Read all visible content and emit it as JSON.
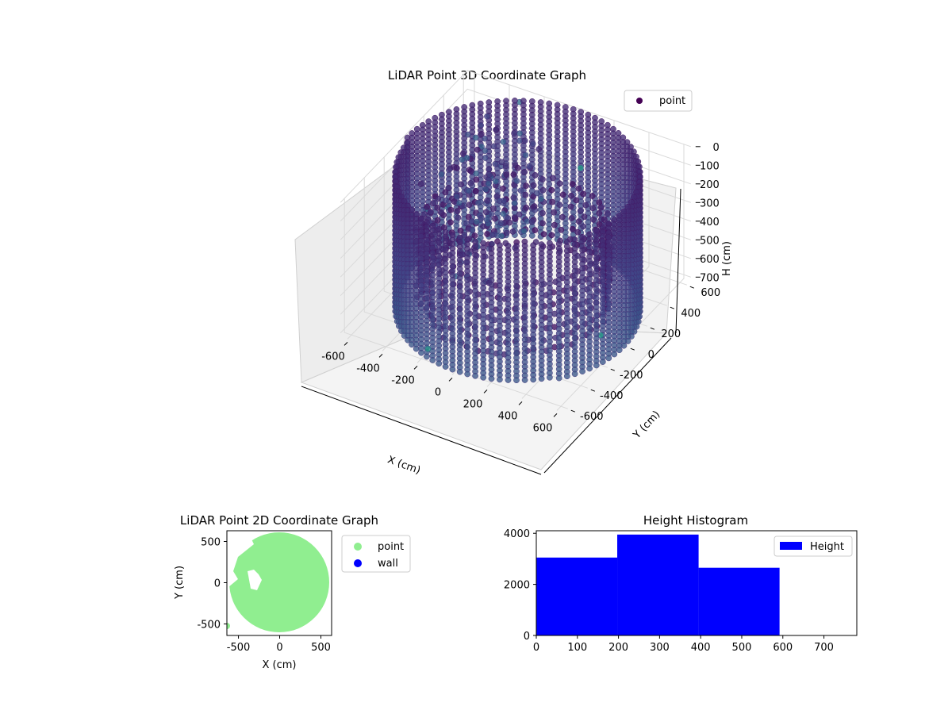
{
  "chart_data": [
    {
      "type": "scatter3d",
      "title": "LiDAR Point 3D Coordinate Graph",
      "xlabel": "X (cm)",
      "ylabel": "Y (cm)",
      "zlabel": "H (cm)",
      "xlim": [
        -650,
        650
      ],
      "ylim": [
        -650,
        650
      ],
      "zlim": [
        0,
        750
      ],
      "z_inverted": true,
      "xticks": [
        -600,
        -400,
        -200,
        0,
        200,
        400,
        600
      ],
      "yticks": [
        -600,
        -400,
        -200,
        0,
        200,
        400,
        600
      ],
      "zticks": [
        0,
        100,
        200,
        300,
        400,
        500,
        600,
        700
      ],
      "legend": {
        "placement": "top-right",
        "entries": [
          {
            "label": "point",
            "color": "#440154"
          }
        ]
      },
      "grid": true,
      "colormap": "viridis",
      "ring_structure": {
        "radius_min": 450,
        "radius_max": 620,
        "height_range": [
          0,
          720
        ]
      },
      "outliers": [
        {
          "x": -560,
          "y": 300,
          "h": 520
        },
        {
          "x": -600,
          "y": 150,
          "h": 460
        },
        {
          "x": -640,
          "y": 80,
          "h": 470
        },
        {
          "x": -620,
          "y": 60,
          "h": 600
        },
        {
          "x": -150,
          "y": -620,
          "h": 640
        },
        {
          "x": 230,
          "y": 250,
          "h": 30
        },
        {
          "x": -330,
          "y": 620,
          "h": 60
        },
        {
          "x": 600,
          "y": -200,
          "h": 560
        }
      ]
    },
    {
      "type": "scatter",
      "title": "LiDAR Point 2D Coordinate Graph",
      "xlabel": "X (cm)",
      "ylabel": "Y (cm)",
      "xlim": [
        -640,
        630
      ],
      "ylim": [
        -640,
        630
      ],
      "xticks": [
        -500,
        0,
        500
      ],
      "yticks": [
        -500,
        0,
        500
      ],
      "legend": {
        "placement": "outside-right",
        "entries": [
          {
            "label": "point",
            "color": "#90ee90"
          },
          {
            "label": "wall",
            "color": "#0000ff"
          }
        ]
      },
      "disk_radius": 600
    },
    {
      "type": "histogram",
      "title": "Height Histogram",
      "xlim": [
        0,
        780
      ],
      "ylim": [
        0,
        4100
      ],
      "xticks": [
        0,
        100,
        200,
        300,
        400,
        500,
        600,
        700
      ],
      "yticks": [
        0,
        2000,
        4000
      ],
      "bins": [
        {
          "start": 0,
          "end": 197,
          "count": 3050
        },
        {
          "start": 197,
          "end": 395,
          "count": 3950
        },
        {
          "start": 395,
          "end": 592,
          "count": 2650
        }
      ],
      "color": "#0000ff",
      "legend": {
        "placement": "top-right",
        "entries": [
          {
            "label": "Height",
            "color": "#0000ff"
          }
        ]
      }
    }
  ]
}
